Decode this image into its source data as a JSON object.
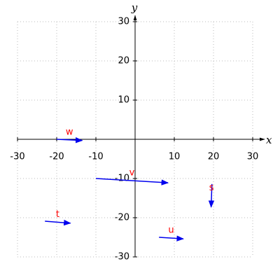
{
  "chart_data": {
    "type": "vector",
    "x_label": "x",
    "y_label": "y",
    "xlim": [
      -30,
      30
    ],
    "ylim": [
      -30,
      30
    ],
    "xticks": [
      -30,
      -20,
      -10,
      10,
      20,
      30
    ],
    "yticks": [
      -30,
      -20,
      -10,
      10,
      20,
      30
    ],
    "grid": true,
    "color": "#0000ee",
    "label_color": "#ff0000",
    "vectors": [
      {
        "name": "w",
        "x": -20,
        "y": 0,
        "dx": 6.5,
        "dy": -0.3
      },
      {
        "name": "v",
        "x": -10,
        "y": -10,
        "dx": 18.4,
        "dy": -1.1
      },
      {
        "name": "s",
        "x": 19.6,
        "y": -11.4,
        "dx": -0.2,
        "dy": -5.9
      },
      {
        "name": "t",
        "x": -23,
        "y": -20.9,
        "dx": 6.5,
        "dy": -0.5
      },
      {
        "name": "u",
        "x": 6.1,
        "y": -25,
        "dx": 6.2,
        "dy": -0.4
      }
    ]
  }
}
